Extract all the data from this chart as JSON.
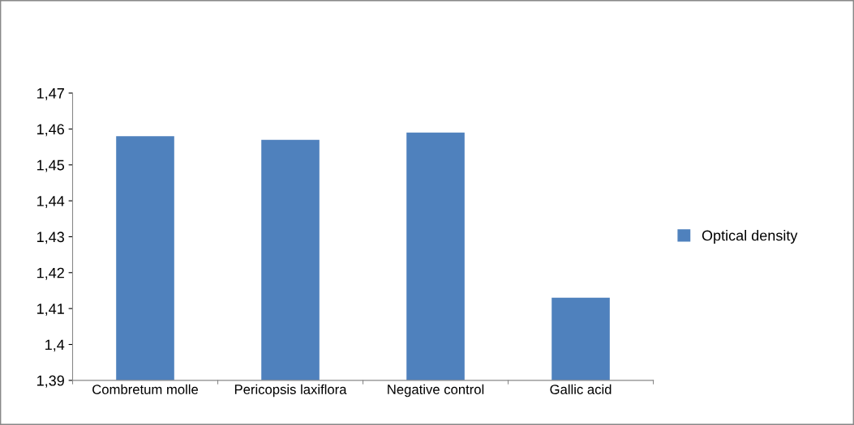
{
  "chart_data": {
    "type": "bar",
    "categories": [
      "Combretum molle",
      "Pericopsis laxiflora",
      "Negative control",
      "Gallic acid"
    ],
    "series": [
      {
        "name": "Optical density",
        "color": "#4f81bd",
        "values": [
          1.458,
          1.457,
          1.459,
          1.413
        ]
      }
    ],
    "ylim": [
      1.39,
      1.47
    ],
    "yticks": [
      {
        "value": 1.39,
        "label": "1,39"
      },
      {
        "value": 1.4,
        "label": "1,4"
      },
      {
        "value": 1.41,
        "label": "1,41"
      },
      {
        "value": 1.42,
        "label": "1,42"
      },
      {
        "value": 1.43,
        "label": "1,43"
      },
      {
        "value": 1.44,
        "label": "1,44"
      },
      {
        "value": 1.45,
        "label": "1,45"
      },
      {
        "value": 1.46,
        "label": "1,46"
      },
      {
        "value": 1.47,
        "label": "1,47"
      }
    ],
    "grid": false,
    "legend": "right"
  }
}
